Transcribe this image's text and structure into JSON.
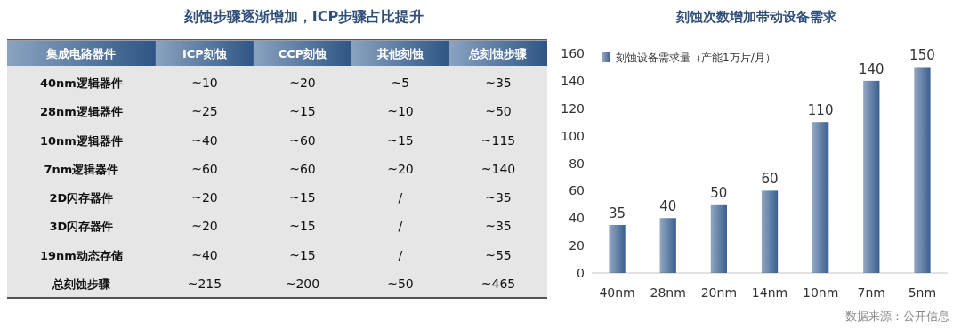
{
  "chart_data": [
    {
      "type": "other",
      "title": "刻蚀步骤逐渐增加，ICP步骤占比提升",
      "ylabel": "集成电路器件",
      "categories": [
        "ICP刻蚀",
        "CCP刻蚀",
        "其他刻蚀",
        "总刻蚀步骤"
      ],
      "y_categories": [
        "40nm逻辑器件",
        "28nm逻辑器件",
        "10nm逻辑器件",
        "7nm逻辑器件",
        "2D闪存器件",
        "3D闪存器件",
        "19nm动态存储",
        "总刻蚀步骤"
      ],
      "cell_labels": [
        [
          "~10",
          "~20",
          "~5",
          "~35"
        ],
        [
          "~25",
          "~15",
          "~10",
          "~50"
        ],
        [
          "~40",
          "~60",
          "~15",
          "~115"
        ],
        [
          "~60",
          "~60",
          "~20",
          "~140"
        ],
        [
          "~20",
          "~15",
          "/",
          "~35"
        ],
        [
          "~20",
          "~15",
          "/",
          "~35"
        ],
        [
          "~40",
          "~15",
          "/",
          "~55"
        ],
        [
          "~215",
          "~200",
          "~50",
          "~465"
        ]
      ]
    },
    {
      "type": "bar",
      "title": "刻蚀次数增加带动设备需求",
      "categories": [
        "40nm",
        "28nm",
        "20nm",
        "14nm",
        "10nm",
        "7nm",
        "5nm"
      ],
      "series": [
        {
          "name": "刻蚀设备需求量（产能1万片/月）",
          "color": "#3a5f8f",
          "values": [
            35,
            40,
            50,
            60,
            110,
            140,
            150
          ]
        }
      ],
      "ylim": [
        0,
        160
      ],
      "yticks": [
        0,
        20,
        40,
        60,
        80,
        100,
        120,
        140,
        160
      ],
      "data_labels": true,
      "legend": "top left",
      "grid": false,
      "annotations": [
        "数据来源：公开信息"
      ]
    }
  ]
}
